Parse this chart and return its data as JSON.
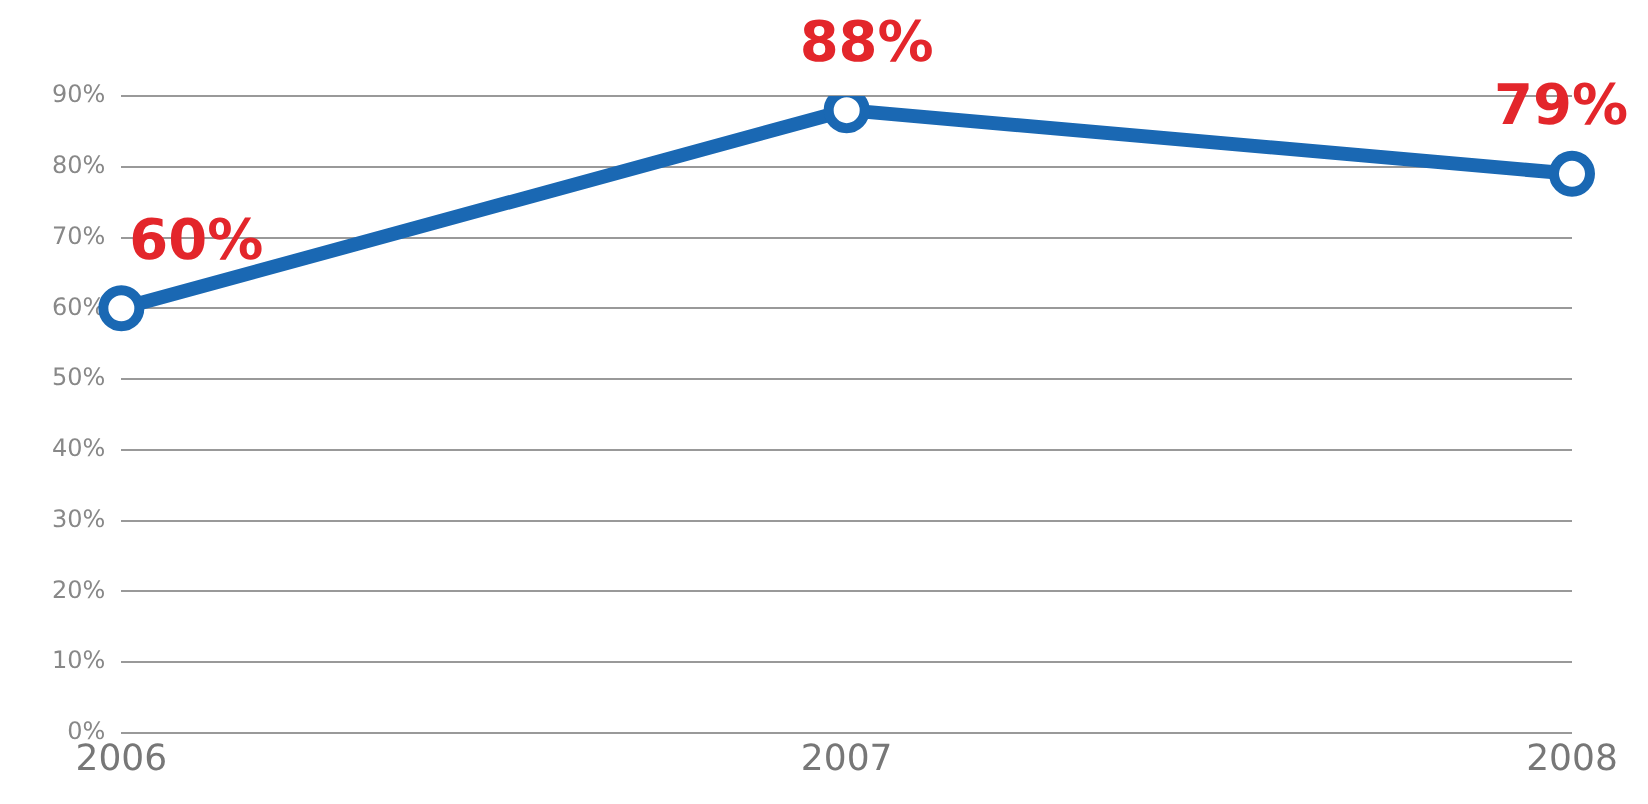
{
  "chart_data": {
    "type": "line",
    "categories": [
      "2006",
      "2007",
      "2008"
    ],
    "series": [
      {
        "color": "#1a68b3",
        "values": [
          60,
          88,
          79
        ],
        "value_labels": [
          "60%",
          "88%",
          "79%"
        ]
      }
    ],
    "ylim": [
      0,
      90
    ],
    "yticks": [
      {
        "value": 0,
        "label": "0%"
      },
      {
        "value": 10,
        "label": "10%"
      },
      {
        "value": 20,
        "label": "20%"
      },
      {
        "value": 30,
        "label": "30%"
      },
      {
        "value": 40,
        "label": "40%"
      },
      {
        "value": 50,
        "label": "50%"
      },
      {
        "value": 60,
        "label": "60%"
      },
      {
        "value": 70,
        "label": "70%"
      },
      {
        "value": 80,
        "label": "80%"
      },
      {
        "value": 90,
        "label": "90%"
      }
    ],
    "grid": "y",
    "marker": "circle",
    "line_style": "solid",
    "legend": false
  }
}
